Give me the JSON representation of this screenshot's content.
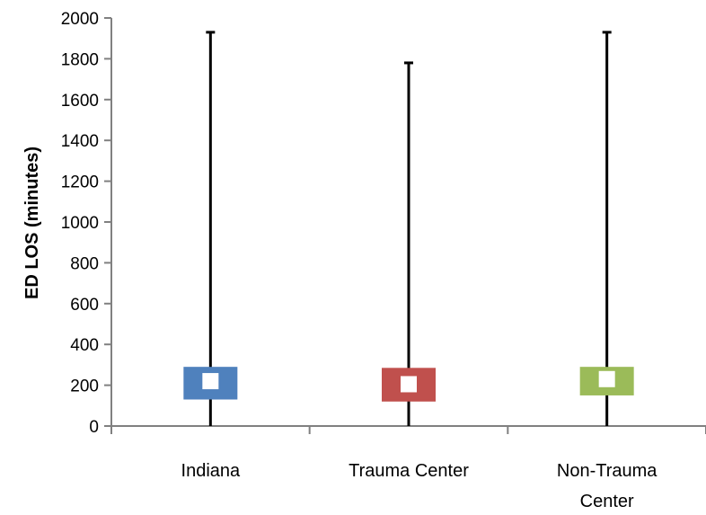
{
  "chart_data": {
    "type": "box",
    "ylabel": "ED LOS (minutes)",
    "ylim": [
      0,
      2000
    ],
    "yticks": [
      "0",
      "200",
      "400",
      "600",
      "800",
      "1000",
      "1200",
      "1400",
      "1600",
      "1800",
      "2000"
    ],
    "grid": false,
    "categories": [
      {
        "label_lines": [
          "Indiana"
        ],
        "min": 0,
        "q1": 130,
        "median": 220,
        "q3": 290,
        "max": 1930,
        "color": "#4F81BD"
      },
      {
        "label_lines": [
          "Trauma Center"
        ],
        "min": 0,
        "q1": 120,
        "median": 205,
        "q3": 285,
        "max": 1780,
        "color": "#C0504D"
      },
      {
        "label_lines": [
          "Non-Trauma",
          "Center"
        ],
        "min": 0,
        "q1": 150,
        "median": 230,
        "q3": 290,
        "max": 1930,
        "color": "#9BBB59"
      }
    ]
  }
}
